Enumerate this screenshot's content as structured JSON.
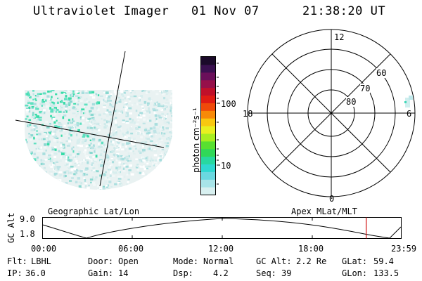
{
  "header": {
    "instrument": "Ultraviolet Imager",
    "date": "01 Nov 07",
    "time": "21:38:20 UT"
  },
  "colorbar": {
    "label": "photon cm⁻²s⁻¹",
    "ticks": [
      "100",
      "10"
    ],
    "colors": [
      "#1b0a2a",
      "#3a1050",
      "#6a0f5a",
      "#96104a",
      "#c0102a",
      "#e01c14",
      "#f04a0a",
      "#f88a08",
      "#f8c810",
      "#e8f020",
      "#a8ee20",
      "#58e030",
      "#30d858",
      "#28d8a0",
      "#30d8d0",
      "#6ad8e0",
      "#a8e4e8",
      "#d8f0f0"
    ]
  },
  "polar": {
    "lat_labels": [
      "80",
      "70",
      "60"
    ],
    "mlt_labels": {
      "top": "12",
      "bottom": "0",
      "left": "18",
      "right": "6"
    }
  },
  "captions": {
    "left": "Geographic Lat/Lon",
    "right": "Apex MLat/MLT"
  },
  "timeline": {
    "ylabel": "GC Alt",
    "yticks": [
      "9.0",
      "1.8"
    ],
    "xticks": [
      "00:00",
      "06:00",
      "12:00",
      "18:00",
      "23:59"
    ],
    "marker_time_hours": 21.64
  },
  "info": {
    "filter_label": "Flt:",
    "filter_value": "LBHL",
    "door_label": "Door:",
    "door_value": "Open",
    "mode_label": "Mode:",
    "mode_value": "Normal",
    "gcalt_label": "GC Alt:",
    "gcalt_value": "2.2 Re",
    "glat_label": "GLat:",
    "glat_value": "59.4",
    "ip_label": "IP:",
    "ip_value": "36.0",
    "gain_label": "Gain:",
    "gain_value": "14",
    "dsp_label": "Dsp:",
    "dsp_value": "4.2",
    "seq_label": "Seq:",
    "seq_value": "39",
    "glon_label": "GLon:",
    "glon_value": "133.5"
  }
}
